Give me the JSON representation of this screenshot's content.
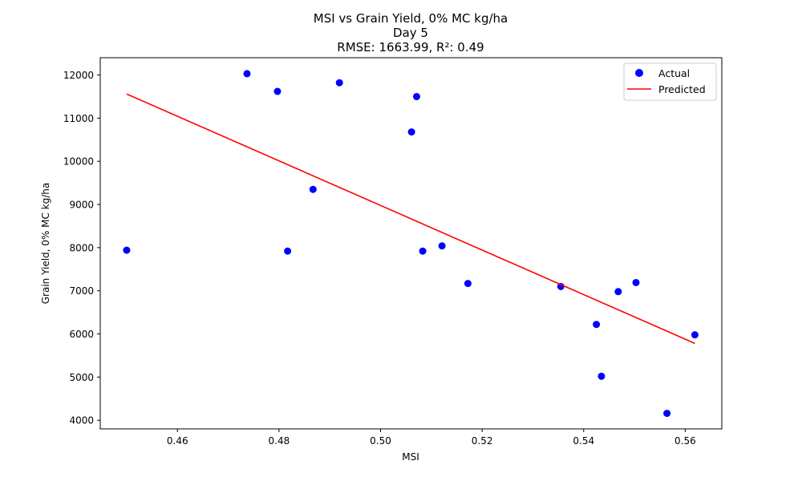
{
  "chart_data": {
    "type": "scatter",
    "title": [
      "MSI vs Grain Yield, 0% MC kg/ha",
      "Day 5",
      "RMSE: 1663.99, R²: 0.49"
    ],
    "xlabel": "MSI",
    "ylabel": "Grain Yield, 0% MC kg/ha",
    "xlim": [
      0.4448,
      0.5672
    ],
    "ylim": [
      3800,
      12400
    ],
    "xticks": [
      0.46,
      0.48,
      0.5,
      0.52,
      0.54,
      0.56
    ],
    "xtick_labels": [
      "0.46",
      "0.48",
      "0.50",
      "0.52",
      "0.54",
      "0.56"
    ],
    "yticks": [
      4000,
      5000,
      6000,
      7000,
      8000,
      9000,
      10000,
      11000,
      12000
    ],
    "ytick_labels": [
      "4000",
      "5000",
      "6000",
      "7000",
      "8000",
      "9000",
      "10000",
      "11000",
      "12000"
    ],
    "grid": false,
    "legend_position": "top-right",
    "series": [
      {
        "name": "Actual",
        "kind": "scatter",
        "color": "#0000ff",
        "points": [
          [
            0.45,
            7940
          ],
          [
            0.4737,
            12030
          ],
          [
            0.4797,
            11620
          ],
          [
            0.4817,
            7920
          ],
          [
            0.4867,
            9350
          ],
          [
            0.4919,
            11820
          ],
          [
            0.5061,
            10680
          ],
          [
            0.5071,
            11500
          ],
          [
            0.5083,
            7920
          ],
          [
            0.5121,
            8040
          ],
          [
            0.5172,
            7170
          ],
          [
            0.5355,
            7100
          ],
          [
            0.5425,
            6220
          ],
          [
            0.5435,
            5020
          ],
          [
            0.5468,
            6980
          ],
          [
            0.5503,
            7190
          ],
          [
            0.5564,
            4160
          ],
          [
            0.5619,
            5980
          ]
        ]
      },
      {
        "name": "Predicted",
        "kind": "line",
        "color": "#ff0000",
        "points": [
          [
            0.45,
            11560
          ],
          [
            0.5619,
            5780
          ]
        ]
      }
    ]
  }
}
